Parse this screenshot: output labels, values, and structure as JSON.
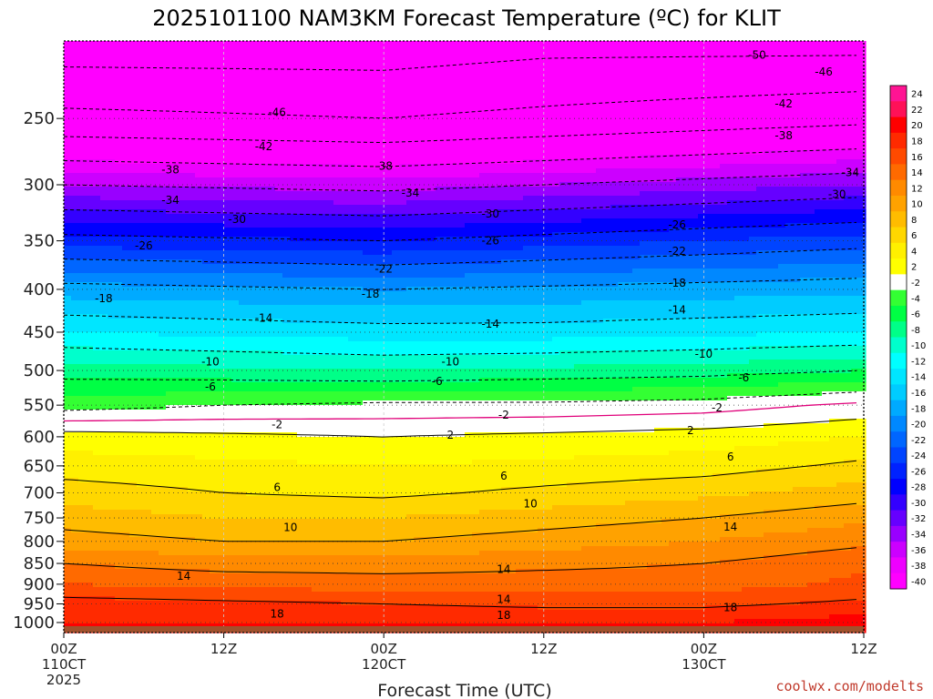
{
  "title": "2025101100 NAM3KM Forecast Temperature (ºC) for KLIT",
  "credit": "coolwx.com/modelts",
  "chart_data": {
    "type": "heatmap",
    "title": "2025101100 NAM3KM Forecast Temperature (ºC) for KLIT",
    "xlabel": "Forecast Time (UTC)",
    "ylabel": "",
    "x_ticks": [
      {
        "h": 0,
        "l1": "00Z",
        "l2": "110CT",
        "l3": "2025"
      },
      {
        "h": 12,
        "l1": "12Z",
        "l2": "",
        "l3": ""
      },
      {
        "h": 24,
        "l1": "00Z",
        "l2": "120CT",
        "l3": ""
      },
      {
        "h": 36,
        "l1": "12Z",
        "l2": "",
        "l3": ""
      },
      {
        "h": 48,
        "l1": "00Z",
        "l2": "130CT",
        "l3": ""
      },
      {
        "h": 60,
        "l1": "12Z",
        "l2": "",
        "l3": ""
      }
    ],
    "xlim": [
      0,
      60
    ],
    "y_scale": "log",
    "ylim": [
      1028,
      202
    ],
    "y_ticks": [
      250,
      300,
      350,
      400,
      450,
      500,
      550,
      600,
      650,
      700,
      750,
      800,
      850,
      900,
      950,
      1000
    ],
    "colorbar": {
      "labels": [
        "24",
        "22",
        "20",
        "18",
        "16",
        "14",
        "12",
        "10",
        "8",
        "6",
        "4",
        "2",
        "-2",
        "-4",
        "-6",
        "-8",
        "-10",
        "-12",
        "-14",
        "-16",
        "-18",
        "-20",
        "-22",
        "-24",
        "-26",
        "-28",
        "-30",
        "-32",
        "-34",
        "-36",
        "-38",
        "-40"
      ],
      "colors": [
        "#ff1493",
        "#ff1158",
        "#ff0000",
        "#ff2a00",
        "#ff4a00",
        "#ff6a00",
        "#ff8a00",
        "#ffa200",
        "#ffbc00",
        "#ffd700",
        "#fff000",
        "#ffff00",
        "#ffffff",
        "#33ff33",
        "#00ff44",
        "#00ff88",
        "#00ffcc",
        "#00ffff",
        "#00e6ff",
        "#00ccff",
        "#00aaff",
        "#0088ff",
        "#0066ff",
        "#0044ff",
        "#0022ff",
        "#0000ff",
        "#3300ff",
        "#6600ff",
        "#9900ff",
        "#cc00ff",
        "#ee00ff",
        "#ff00ff"
      ]
    },
    "temperature_levels": [
      {
        "p": 1000,
        "t": [
          20,
          20,
          20,
          20,
          20,
          21
        ]
      },
      {
        "p": 950,
        "t": [
          19,
          18.5,
          18,
          17.5,
          17.5,
          18.5
        ]
      },
      {
        "p": 900,
        "t": [
          16,
          15.5,
          15,
          15,
          15,
          16.5
        ]
      },
      {
        "p": 850,
        "t": [
          14,
          13,
          13,
          13.5,
          14,
          15.5
        ]
      },
      {
        "p": 800,
        "t": [
          11,
          10,
          10,
          11,
          12,
          13.5
        ]
      },
      {
        "p": 750,
        "t": [
          9,
          8,
          8,
          9,
          10,
          11.5
        ]
      },
      {
        "p": 700,
        "t": [
          7,
          6,
          5.5,
          6.5,
          7.5,
          9
        ]
      },
      {
        "p": 650,
        "t": [
          5,
          4.5,
          4,
          4.5,
          5,
          6.5
        ]
      },
      {
        "p": 600,
        "t": [
          3,
          2.5,
          2,
          2.5,
          3,
          4
        ]
      },
      {
        "p": 550,
        "t": [
          -3,
          -2,
          -1.5,
          -1.5,
          -1,
          0.5
        ]
      },
      {
        "p": 500,
        "t": [
          -7,
          -7.5,
          -8,
          -7.5,
          -7,
          -6
        ]
      },
      {
        "p": 450,
        "t": [
          -12,
          -12.5,
          -13,
          -13,
          -12.5,
          -12
        ]
      },
      {
        "p": 400,
        "t": [
          -17,
          -17.5,
          -18,
          -17.5,
          -17,
          -16.5
        ]
      },
      {
        "p": 350,
        "t": [
          -25,
          -25.5,
          -26,
          -25,
          -24,
          -23
        ]
      },
      {
        "p": 300,
        "t": [
          -34,
          -34.5,
          -35,
          -34,
          -33,
          -32
        ]
      },
      {
        "p": 250,
        "t": [
          -45,
          -45.5,
          -46,
          -45,
          -44,
          -43
        ]
      },
      {
        "p": 205,
        "t": [
          -52,
          -52,
          -52,
          -51,
          -51,
          -51
        ]
      }
    ],
    "contour_labels": [
      {
        "text": "-50",
        "h": 52,
        "p": 210
      },
      {
        "text": "-46",
        "h": 16,
        "p": 246
      },
      {
        "text": "-46",
        "h": 57,
        "p": 220
      },
      {
        "text": "-42",
        "h": 15,
        "p": 270
      },
      {
        "text": "-42",
        "h": 54,
        "p": 240
      },
      {
        "text": "-38",
        "h": 8,
        "p": 288
      },
      {
        "text": "-38",
        "h": 24,
        "p": 285
      },
      {
        "text": "-38",
        "h": 54,
        "p": 262
      },
      {
        "text": "-34",
        "h": 8,
        "p": 313
      },
      {
        "text": "-34",
        "h": 26,
        "p": 307
      },
      {
        "text": "-34",
        "h": 59,
        "p": 290
      },
      {
        "text": "-30",
        "h": 13,
        "p": 330
      },
      {
        "text": "-30",
        "h": 32,
        "p": 325
      },
      {
        "text": "-30",
        "h": 58,
        "p": 308
      },
      {
        "text": "-26",
        "h": 6,
        "p": 355
      },
      {
        "text": "-26",
        "h": 32,
        "p": 350
      },
      {
        "text": "-26",
        "h": 46,
        "p": 335
      },
      {
        "text": "-22",
        "h": 24,
        "p": 378
      },
      {
        "text": "-22",
        "h": 46,
        "p": 360
      },
      {
        "text": "-18",
        "h": 3,
        "p": 410
      },
      {
        "text": "-18",
        "h": 23,
        "p": 405
      },
      {
        "text": "-18",
        "h": 46,
        "p": 393
      },
      {
        "text": "-14",
        "h": 15,
        "p": 433
      },
      {
        "text": "-14",
        "h": 32,
        "p": 440
      },
      {
        "text": "-14",
        "h": 46,
        "p": 423
      },
      {
        "text": "-10",
        "h": 11,
        "p": 488
      },
      {
        "text": "-10",
        "h": 29,
        "p": 488
      },
      {
        "text": "-10",
        "h": 48,
        "p": 478
      },
      {
        "text": "-6",
        "h": 11,
        "p": 523
      },
      {
        "text": "-6",
        "h": 28,
        "p": 515
      },
      {
        "text": "-6",
        "h": 51,
        "p": 510
      },
      {
        "text": "-2",
        "h": 16,
        "p": 580
      },
      {
        "text": "-2",
        "h": 33,
        "p": 565
      },
      {
        "text": "-2",
        "h": 49,
        "p": 554
      },
      {
        "text": "2",
        "h": 29,
        "p": 597
      },
      {
        "text": "2",
        "h": 47,
        "p": 590
      },
      {
        "text": "6",
        "h": 16,
        "p": 690
      },
      {
        "text": "6",
        "h": 33,
        "p": 668
      },
      {
        "text": "6",
        "h": 50,
        "p": 634
      },
      {
        "text": "10",
        "h": 17,
        "p": 770
      },
      {
        "text": "10",
        "h": 35,
        "p": 721
      },
      {
        "text": "14",
        "h": 9,
        "p": 880
      },
      {
        "text": "14",
        "h": 33,
        "p": 864
      },
      {
        "text": "14",
        "h": 33,
        "p": 938
      },
      {
        "text": "14",
        "h": 50,
        "p": 769
      },
      {
        "text": "18",
        "h": 16,
        "p": 977
      },
      {
        "text": "18",
        "h": 33,
        "p": 980
      },
      {
        "text": "18",
        "h": 50,
        "p": 960
      }
    ]
  }
}
